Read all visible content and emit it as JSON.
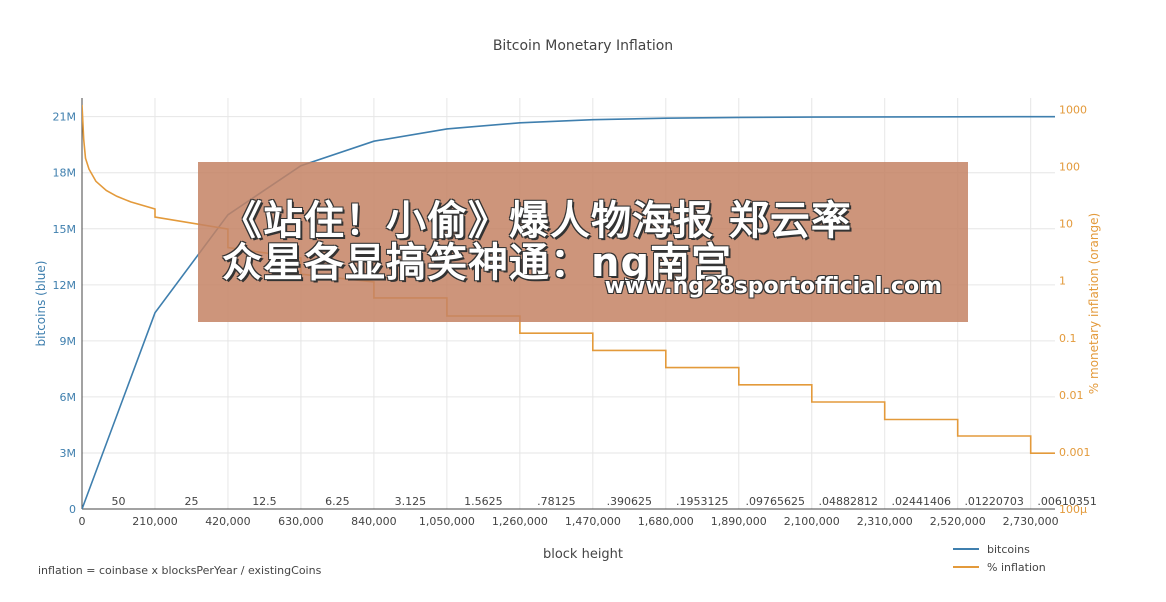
{
  "chart_data": {
    "type": "line",
    "title": "Bitcoin Monetary Inflation",
    "xlabel": "block height",
    "ylabel_left": "bitcoins (blue)",
    "ylabel_right": "% monetary inflation (orange)",
    "xlim": [
      0,
      2800000
    ],
    "ylim_left": [
      0,
      22000000
    ],
    "ylim_right_log10": [
      -4,
      3.2
    ],
    "x_ticks": [
      "0",
      "210,000",
      "420,000",
      "630,000",
      "840,000",
      "1,050,000",
      "1,260,000",
      "1,470,000",
      "1,680,000",
      "1,890,000",
      "2,100,000",
      "2,310,000",
      "2,520,000",
      "2,730,000"
    ],
    "y_left_ticks": [
      {
        "v": 0,
        "label": "0"
      },
      {
        "v": 3000000,
        "label": "3M"
      },
      {
        "v": 6000000,
        "label": "6M"
      },
      {
        "v": 9000000,
        "label": "9M"
      },
      {
        "v": 12000000,
        "label": "12M"
      },
      {
        "v": 15000000,
        "label": "15M"
      },
      {
        "v": 18000000,
        "label": "18M"
      },
      {
        "v": 21000000,
        "label": "21M"
      }
    ],
    "y_right_ticks": [
      {
        "v": 1000,
        "label": "1000"
      },
      {
        "v": 100,
        "label": "100"
      },
      {
        "v": 10,
        "label": "10"
      },
      {
        "v": 1,
        "label": "1"
      },
      {
        "v": 0.1,
        "label": "0.1"
      },
      {
        "v": 0.01,
        "label": "0.01"
      },
      {
        "v": 0.001,
        "label": "0.001"
      },
      {
        "v": 0.0001,
        "label": "100μ"
      }
    ],
    "reward_labels": [
      "50",
      "25",
      "12.5",
      "6.25",
      "3.125",
      "1.5625",
      ".78125",
      ".390625",
      ".1953125",
      ".09765625",
      ".04882812",
      ".02441406",
      ".01220703",
      ".00610351"
    ],
    "grid": true,
    "legend_position": "bottom-right",
    "series": [
      {
        "name": "bitcoins",
        "color": "#3f7fae",
        "x": [
          0,
          210000,
          420000,
          630000,
          840000,
          1050000,
          1260000,
          1470000,
          1680000,
          1890000,
          2100000,
          2310000,
          2520000,
          2730000,
          2930000
        ],
        "values": [
          0,
          10500000,
          15750000,
          18375000,
          19687500,
          20343750,
          20671875,
          20835938,
          20917969,
          20958984,
          20979492,
          20989746,
          20994873,
          20997437,
          20998500
        ]
      },
      {
        "name": "% inflation",
        "color": "#e39a3b",
        "x": [
          0,
          5000,
          10000,
          20000,
          40000,
          70000,
          100000,
          140000,
          210000,
          210000,
          420000,
          420000,
          630000,
          630000,
          840000,
          840000,
          1050000,
          1050000,
          1260000,
          1260000,
          1470000,
          1470000,
          1680000,
          1680000,
          1890000,
          1890000,
          2100000,
          2100000,
          2310000,
          2310000,
          2520000,
          2520000,
          2730000,
          2730000,
          2930000
        ],
        "values": [
          1200,
          300,
          140,
          90,
          55,
          38,
          30,
          24,
          18,
          13,
          8,
          3.8,
          2.5,
          1.3,
          0.95,
          0.5,
          0.5,
          0.24,
          0.24,
          0.12,
          0.12,
          0.06,
          0.06,
          0.03,
          0.03,
          0.015,
          0.015,
          0.0075,
          0.0075,
          0.0037,
          0.0037,
          0.0019,
          0.0019,
          0.00095,
          0.00095
        ]
      }
    ]
  },
  "annotation": {
    "formula": "inflation = coinbase x blocksPerYear / existingCoins"
  },
  "legend": {
    "bitcoins": "bitcoins",
    "inflation": "% inflation"
  },
  "banner": {
    "line1": "《站住！小偷》爆人物海报 郑云率",
    "line2": "众星各显搞笑神通：ng南宫",
    "url": "www.ng28sportofficial.com"
  }
}
